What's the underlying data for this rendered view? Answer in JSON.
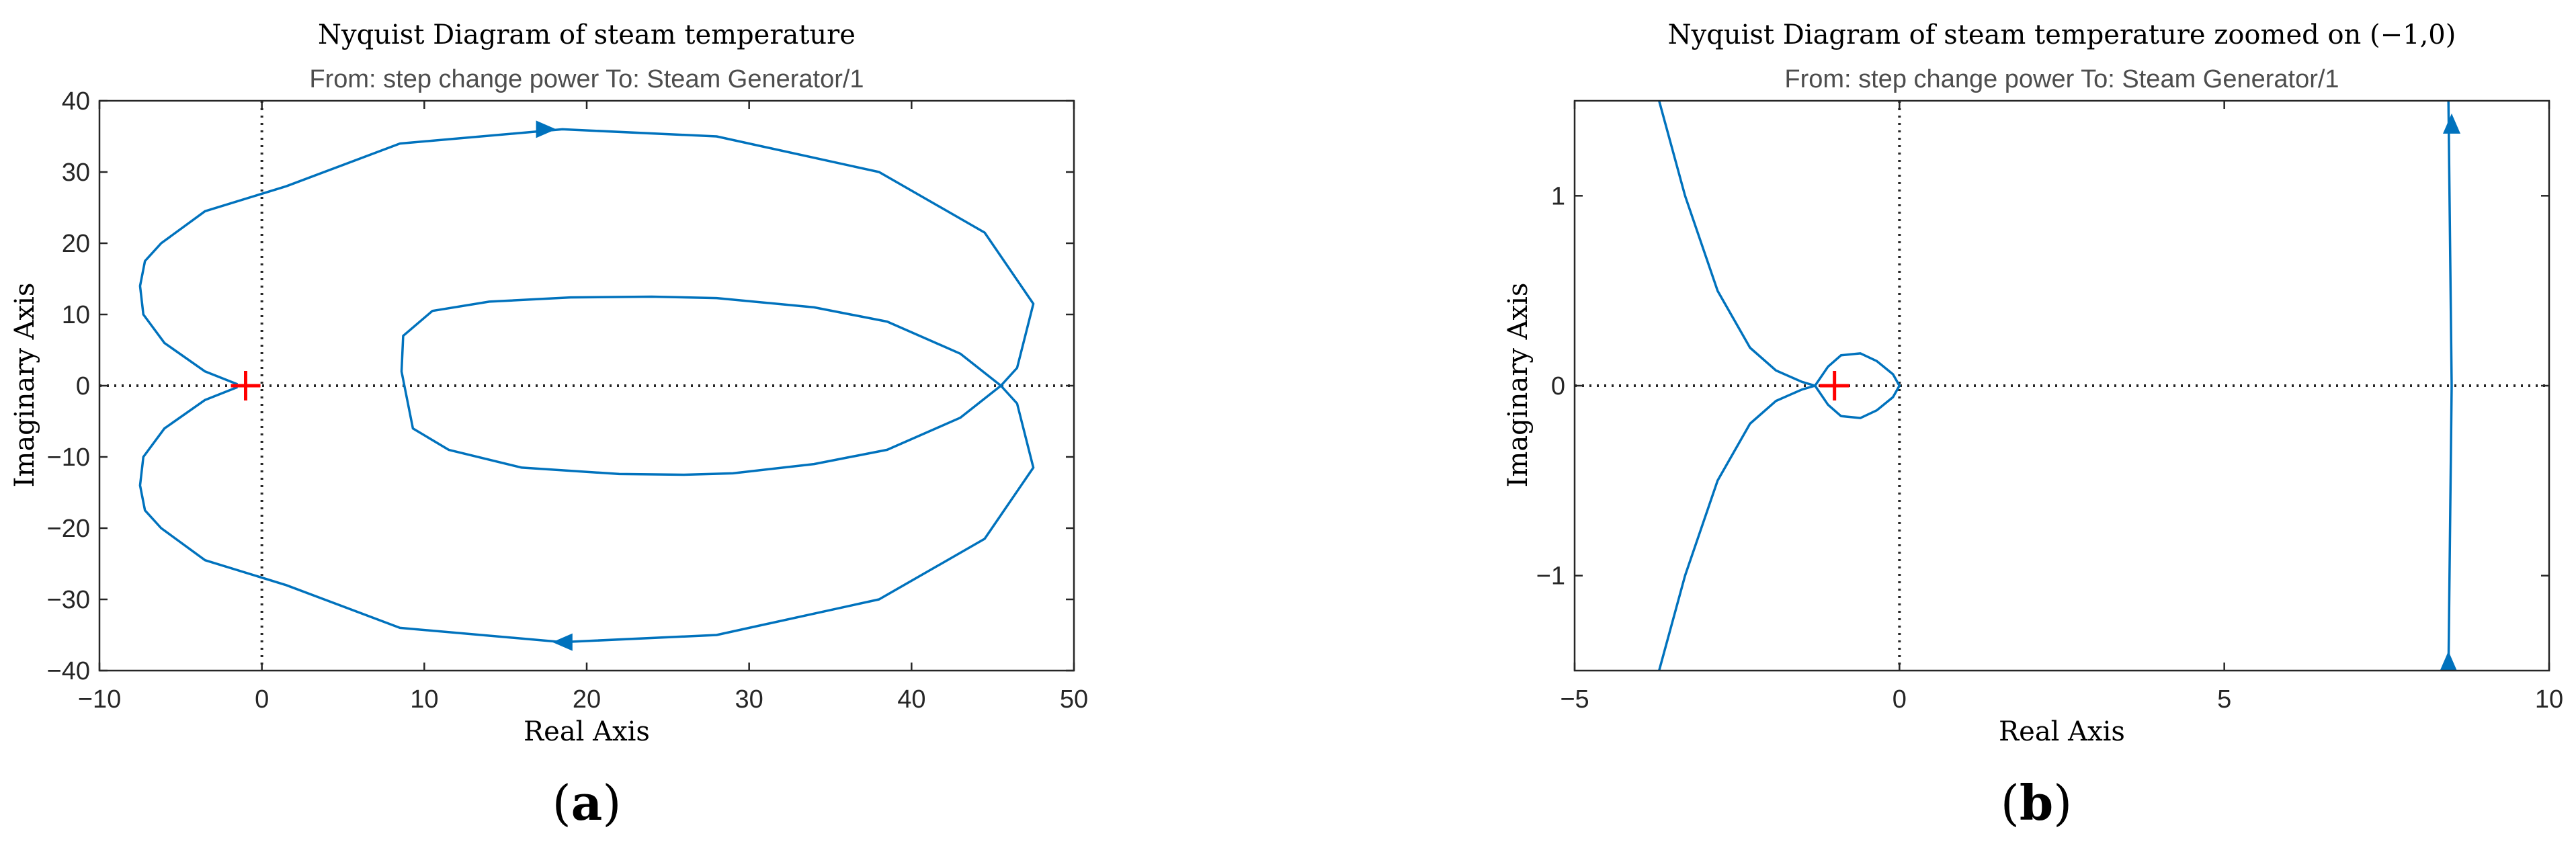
{
  "panels": [
    {
      "title": "Nyquist Diagram of steam temperature",
      "subtitle": "From: step change power  To: Steam Generator/1",
      "xlabel": "Real Axis",
      "ylabel": "Imaginary Axis",
      "caption_open": "(",
      "caption_letter": "a",
      "caption_close": ")",
      "xticks": [
        "−10",
        "0",
        "10",
        "20",
        "30",
        "40",
        "50"
      ],
      "yticks": [
        "−40",
        "−30",
        "−20",
        "−10",
        "0",
        "10",
        "20",
        "30",
        "40"
      ]
    },
    {
      "title": "Nyquist Diagram of steam temperature zoomed on (−1,0)",
      "subtitle": "From: step change power  To: Steam Generator/1",
      "xlabel": "Real Axis",
      "ylabel": "Imaginary Axis",
      "caption_open": "(",
      "caption_letter": "b",
      "caption_close": ")",
      "xticks": [
        "−5",
        "0",
        "5",
        "10"
      ],
      "yticks": [
        "−1",
        "0",
        "1"
      ]
    }
  ],
  "colors": {
    "curve": "#0072BD",
    "critical_point": "#ff0000",
    "axes": "#262626",
    "zero_lines": "#262626"
  },
  "chart_data": [
    {
      "type": "line",
      "title": "Nyquist Diagram of steam temperature",
      "subtitle": "From: step change power  To: Steam Generator/1",
      "xlabel": "Real Axis",
      "ylabel": "Imaginary Axis",
      "xlim": [
        -10,
        50
      ],
      "ylim": [
        -40,
        40
      ],
      "xticks": [
        -10,
        0,
        10,
        20,
        30,
        40,
        50
      ],
      "yticks": [
        -40,
        -30,
        -20,
        -10,
        0,
        10,
        20,
        30,
        40
      ],
      "grid": false,
      "critical_point": [
        -1,
        0
      ],
      "series": [
        {
          "x": [
            -1.5,
            -3.5,
            -6,
            -7.3,
            -7.5,
            -7.2,
            -6.2,
            -3.5,
            1.5,
            8.5,
            18.5,
            28,
            38,
            44.5,
            47.5,
            46.5,
            45.5,
            43,
            38.5,
            34,
            28,
            24,
            19,
            14,
            10.5,
            8.7,
            8.6,
            9.3,
            11.5,
            16,
            22,
            26,
            29,
            34,
            38.5,
            43,
            45.5,
            46.5,
            47.5,
            44.5,
            38,
            28,
            18.5,
            8.5,
            1.5,
            -3.5,
            -6.2,
            -7.2,
            -7.5,
            -7.3,
            -6,
            -3.5,
            -1.5
          ],
          "y": [
            0.2,
            2,
            6,
            10,
            14,
            17.5,
            20,
            24.5,
            28,
            34,
            36,
            35,
            30,
            21.5,
            11.5,
            2.5,
            0,
            4.5,
            9,
            11,
            12.3,
            12.5,
            12.4,
            11.8,
            10.5,
            7,
            2,
            -6,
            -9,
            -11.5,
            -12.4,
            -12.5,
            -12.3,
            -11,
            -9,
            -4.5,
            0,
            -2.5,
            -11.5,
            -21.5,
            -30,
            -35,
            -36,
            -34,
            -28,
            -24.5,
            -20,
            -17.5,
            -14,
            -10,
            -6,
            -2,
            -0.2
          ]
        }
      ]
    },
    {
      "type": "line",
      "title": "Nyquist Diagram of steam temperature zoomed on (−1,0)",
      "subtitle": "From: step change power  To: Steam Generator/1",
      "xlabel": "Real Axis",
      "ylabel": "Imaginary Axis",
      "xlim": [
        -5,
        10
      ],
      "ylim": [
        -1.5,
        1.5
      ],
      "xticks": [
        -5,
        0,
        5,
        10
      ],
      "yticks": [
        -1,
        0,
        1
      ],
      "grid": false,
      "critical_point": [
        -1,
        0
      ],
      "series": [
        {
          "x": [
            -3.7,
            -3.3,
            -2.8,
            -2.3,
            -1.9,
            -1.5,
            -1.3,
            -1.1,
            -0.9,
            -0.6,
            -0.35,
            -0.1,
            0,
            -0.1,
            -0.35,
            -0.6,
            -0.9,
            -1.1,
            -1.3,
            -1.5,
            -1.9,
            -2.3,
            -2.8,
            -3.3,
            -3.7
          ],
          "y": [
            1.5,
            1.0,
            0.5,
            0.2,
            0.08,
            0.02,
            0.0,
            0.1,
            0.16,
            0.17,
            0.13,
            0.06,
            0.0,
            -0.06,
            -0.13,
            -0.17,
            -0.16,
            -0.1,
            0.0,
            -0.02,
            -0.08,
            -0.2,
            -0.5,
            -1.0,
            -1.5
          ]
        },
        {
          "x": [
            8.45,
            8.5,
            8.45
          ],
          "y": [
            1.5,
            0.0,
            -1.5
          ]
        }
      ]
    }
  ]
}
